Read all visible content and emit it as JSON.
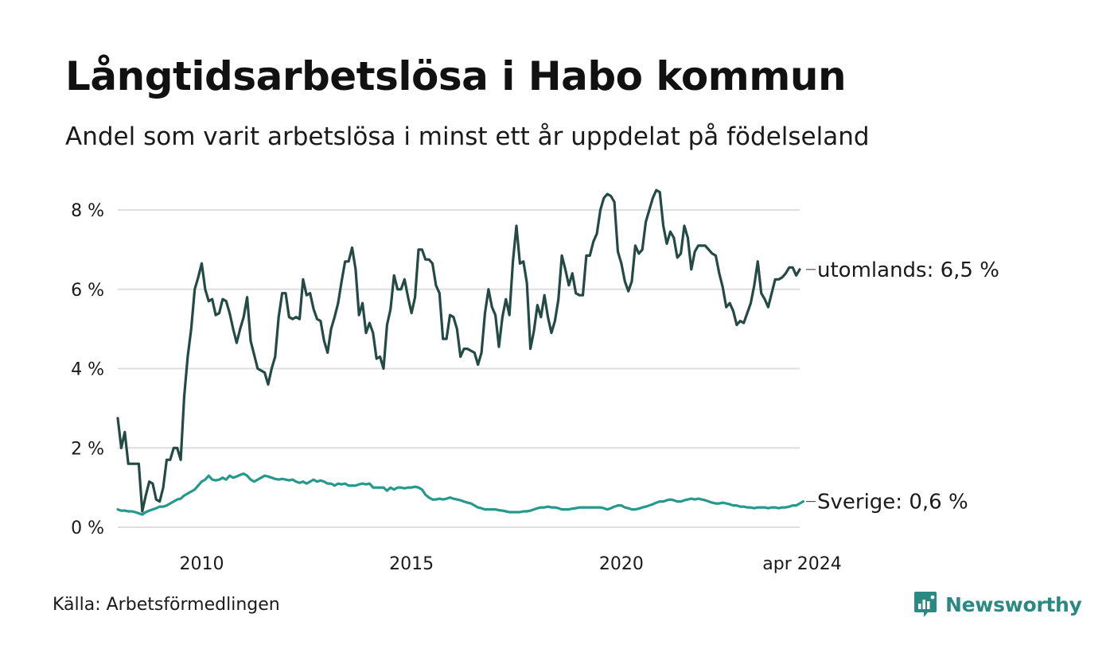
{
  "title": "Långtidsarbetslösa i Habo kommun",
  "subtitle": "Andel som varit arbetslösa i minst ett år uppdelat på födelseland",
  "source": "Källa: Arbetsförmedlingen",
  "brand": {
    "name": "Newsworthy",
    "icon": "newsworthy-logo-icon",
    "color": "#2a8a82"
  },
  "chart_data": {
    "type": "line",
    "title": "Långtidsarbetslösa i Habo kommun",
    "subtitle": "Andel som varit arbetslösa i minst ett år uppdelat på födelseland",
    "xlabel": "",
    "ylabel": "",
    "x_start": 2008.0,
    "x_step": 0.0833333,
    "xlim": [
      2008.0,
      2024.25
    ],
    "ylim": [
      0,
      8.5
    ],
    "y_ticks": [
      0,
      2,
      4,
      6,
      8
    ],
    "y_tick_labels": [
      "0 %",
      "2 %",
      "4 %",
      "6 %",
      "8 %"
    ],
    "x_ticks": [
      2010,
      2015,
      2020,
      2024.25
    ],
    "x_tick_labels": [
      "2010",
      "2015",
      "2020",
      "apr 2024"
    ],
    "grid": true,
    "series": [
      {
        "name": "utomlands",
        "color": "#234a44",
        "end_label": "utomlands: 6,5 %",
        "values": [
          2.75,
          2.0,
          2.4,
          1.6,
          1.6,
          1.6,
          1.6,
          0.4,
          0.8,
          1.15,
          1.1,
          0.7,
          0.65,
          1.0,
          1.7,
          1.7,
          2.0,
          2.0,
          1.7,
          3.3,
          4.3,
          5.0,
          6.0,
          6.3,
          6.65,
          6.0,
          5.7,
          5.75,
          5.35,
          5.4,
          5.75,
          5.7,
          5.4,
          5.0,
          4.65,
          5.0,
          5.3,
          5.8,
          4.7,
          4.35,
          4.0,
          3.95,
          3.9,
          3.6,
          4.0,
          4.3,
          5.3,
          5.9,
          5.9,
          5.3,
          5.25,
          5.3,
          5.25,
          6.25,
          5.85,
          5.9,
          5.5,
          5.25,
          5.2,
          4.7,
          4.4,
          5.0,
          5.3,
          5.65,
          6.2,
          6.7,
          6.7,
          7.05,
          6.5,
          5.35,
          5.65,
          4.9,
          5.15,
          4.9,
          4.25,
          4.3,
          4.0,
          5.1,
          5.5,
          6.35,
          6.0,
          6.0,
          6.25,
          5.8,
          5.4,
          5.8,
          7.0,
          7.0,
          6.75,
          6.75,
          6.65,
          6.1,
          5.9,
          4.75,
          4.75,
          5.35,
          5.3,
          5.0,
          4.3,
          4.5,
          4.5,
          4.45,
          4.4,
          4.1,
          4.4,
          5.4,
          6.0,
          5.55,
          5.35,
          4.55,
          5.3,
          5.75,
          5.35,
          6.7,
          7.6,
          6.65,
          6.7,
          6.15,
          4.5,
          4.95,
          5.6,
          5.3,
          5.85,
          5.3,
          4.9,
          5.2,
          5.75,
          6.85,
          6.5,
          6.1,
          6.4,
          5.9,
          5.85,
          5.85,
          6.85,
          6.85,
          7.2,
          7.4,
          8.0,
          8.3,
          8.4,
          8.35,
          8.2,
          6.95,
          6.65,
          6.2,
          5.95,
          6.2,
          7.1,
          6.9,
          7.0,
          7.7,
          8.0,
          8.3,
          8.5,
          8.45,
          7.6,
          7.15,
          7.45,
          7.3,
          6.8,
          6.9,
          7.6,
          7.3,
          6.5,
          6.95,
          7.1,
          7.1,
          7.1,
          7.0,
          6.9,
          6.85,
          6.4,
          6.05,
          5.55,
          5.65,
          5.45,
          5.1,
          5.2,
          5.15,
          5.4,
          5.65,
          6.1,
          6.7,
          5.9,
          5.75,
          5.55,
          5.9,
          6.25,
          6.25,
          6.3,
          6.4,
          6.55,
          6.55,
          6.35,
          6.5
        ]
      },
      {
        "name": "Sverige",
        "color": "#25998b",
        "end_label": "Sverige: 0,6 %",
        "values": [
          0.45,
          0.42,
          0.42,
          0.4,
          0.4,
          0.38,
          0.35,
          0.32,
          0.38,
          0.42,
          0.45,
          0.48,
          0.52,
          0.52,
          0.55,
          0.6,
          0.65,
          0.7,
          0.72,
          0.8,
          0.85,
          0.9,
          0.95,
          1.05,
          1.15,
          1.2,
          1.3,
          1.2,
          1.18,
          1.2,
          1.25,
          1.2,
          1.3,
          1.25,
          1.28,
          1.32,
          1.35,
          1.3,
          1.2,
          1.15,
          1.2,
          1.25,
          1.3,
          1.28,
          1.25,
          1.22,
          1.2,
          1.22,
          1.2,
          1.18,
          1.2,
          1.15,
          1.12,
          1.15,
          1.1,
          1.15,
          1.2,
          1.15,
          1.18,
          1.15,
          1.1,
          1.1,
          1.05,
          1.1,
          1.08,
          1.1,
          1.05,
          1.05,
          1.05,
          1.08,
          1.1,
          1.08,
          1.1,
          1.0,
          1.0,
          1.0,
          1.0,
          0.92,
          1.0,
          0.95,
          1.0,
          1.0,
          0.98,
          1.0,
          1.0,
          1.02,
          1.0,
          0.95,
          0.82,
          0.75,
          0.7,
          0.7,
          0.72,
          0.7,
          0.72,
          0.75,
          0.72,
          0.7,
          0.68,
          0.65,
          0.62,
          0.6,
          0.55,
          0.5,
          0.48,
          0.45,
          0.45,
          0.45,
          0.45,
          0.43,
          0.42,
          0.4,
          0.38,
          0.38,
          0.38,
          0.38,
          0.4,
          0.4,
          0.42,
          0.45,
          0.48,
          0.5,
          0.5,
          0.52,
          0.5,
          0.5,
          0.48,
          0.45,
          0.45,
          0.45,
          0.47,
          0.48,
          0.5,
          0.5,
          0.5,
          0.5,
          0.5,
          0.5,
          0.5,
          0.48,
          0.45,
          0.48,
          0.52,
          0.55,
          0.55,
          0.5,
          0.48,
          0.45,
          0.45,
          0.47,
          0.5,
          0.52,
          0.55,
          0.58,
          0.62,
          0.65,
          0.65,
          0.68,
          0.7,
          0.68,
          0.65,
          0.65,
          0.68,
          0.7,
          0.72,
          0.7,
          0.72,
          0.7,
          0.68,
          0.65,
          0.62,
          0.6,
          0.6,
          0.62,
          0.6,
          0.58,
          0.55,
          0.55,
          0.52,
          0.52,
          0.5,
          0.5,
          0.48,
          0.5,
          0.5,
          0.5,
          0.48,
          0.5,
          0.5,
          0.48,
          0.5,
          0.5,
          0.52,
          0.55,
          0.55,
          0.6,
          0.65
        ]
      }
    ]
  }
}
